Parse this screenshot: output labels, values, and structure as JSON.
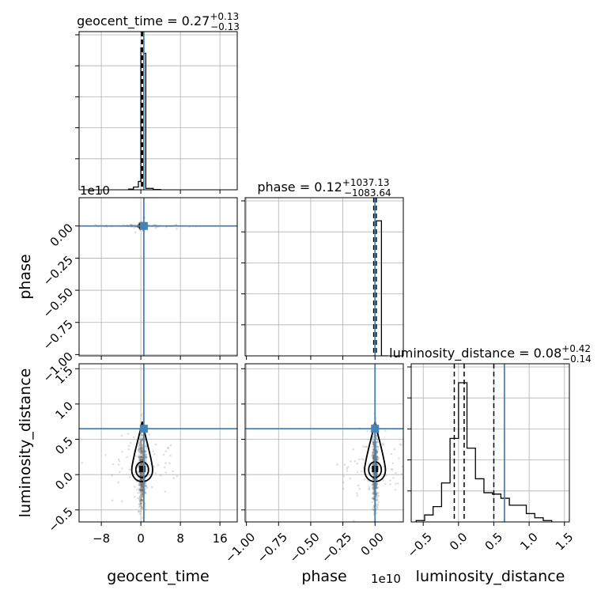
{
  "chart_data": {
    "type": "corner",
    "parameters": [
      "geocent_time",
      "phase",
      "luminosity_distance"
    ],
    "axis_labels": [
      "geocent_time",
      "phase",
      "luminosity_distance"
    ],
    "panel_titles": [
      {
        "param": "geocent_time",
        "text": "geocent_time = 0.27",
        "sup": "+0.13",
        "sub": "−0.13"
      },
      {
        "param": "phase",
        "text": "phase = 0.12",
        "sup": "+1037.13",
        "sub": "−1083.64"
      },
      {
        "param": "luminosity_distance",
        "text": "luminosity_distance = 0.08",
        "sup": "+0.42",
        "sub": "−0.14"
      }
    ],
    "offset_texts": {
      "phase_y": "1e10",
      "phase_x": "1e10"
    },
    "ranges": {
      "geocent_time": [
        -12.5,
        19.5
      ],
      "phase": [
        -1.01,
        0.22
      ],
      "luminosity_distance": [
        -0.67,
        1.57
      ]
    },
    "ticks": {
      "geocent_time": [
        "−8",
        "0",
        "8",
        "16"
      ],
      "phase": [
        "−1.00",
        "−0.75",
        "−0.50",
        "−0.25",
        "0.00"
      ],
      "luminosity_distance": [
        "−0.5",
        "0.0",
        "0.5",
        "1.0",
        "1.5"
      ]
    },
    "tick_values": {
      "geocent_time": [
        -8,
        0,
        8,
        16
      ],
      "phase": [
        -1.0,
        -0.75,
        -0.5,
        -0.25,
        0.0
      ],
      "luminosity_distance": [
        -0.5,
        0.0,
        0.5,
        1.0,
        1.5
      ]
    },
    "truths": {
      "geocent_time": 0.6,
      "phase": 0.0,
      "luminosity_distance": 0.65
    },
    "quantiles": {
      "geocent_time": [
        0.14,
        0.27,
        0.4
      ],
      "phase": [
        -0.01,
        0.0,
        0.01
      ],
      "luminosity_distance": [
        -0.06,
        0.08,
        0.5
      ]
    },
    "histograms": {
      "geocent_time": {
        "edges": [
          -2.5,
          -1.5,
          -0.5,
          0.0,
          0.5,
          1.0,
          2.5,
          4.0
        ],
        "heights": [
          0.005,
          0.02,
          0.06,
          1.02,
          0.98,
          0.01,
          0.002
        ]
      },
      "phase": {
        "edges": [
          -0.01,
          0.0,
          0.05,
          0.1
        ],
        "heights": [
          0.0,
          0.97,
          0.0
        ]
      },
      "luminosity_distance": {
        "edges": [
          -0.6,
          -0.48,
          -0.36,
          -0.24,
          -0.12,
          0.0,
          0.12,
          0.24,
          0.36,
          0.48,
          0.6,
          0.72,
          0.84,
          0.96,
          1.08,
          1.2,
          1.32
        ],
        "heights": [
          0.01,
          0.05,
          0.11,
          0.28,
          0.6,
          1.0,
          0.53,
          0.31,
          0.21,
          0.2,
          0.17,
          0.12,
          0.12,
          0.06,
          0.03,
          0.01
        ]
      }
    },
    "colors": {
      "truth": "#4682b4",
      "grid": "#b0b0b0",
      "hist": "#000000",
      "points": "#555555"
    },
    "grid": true
  }
}
